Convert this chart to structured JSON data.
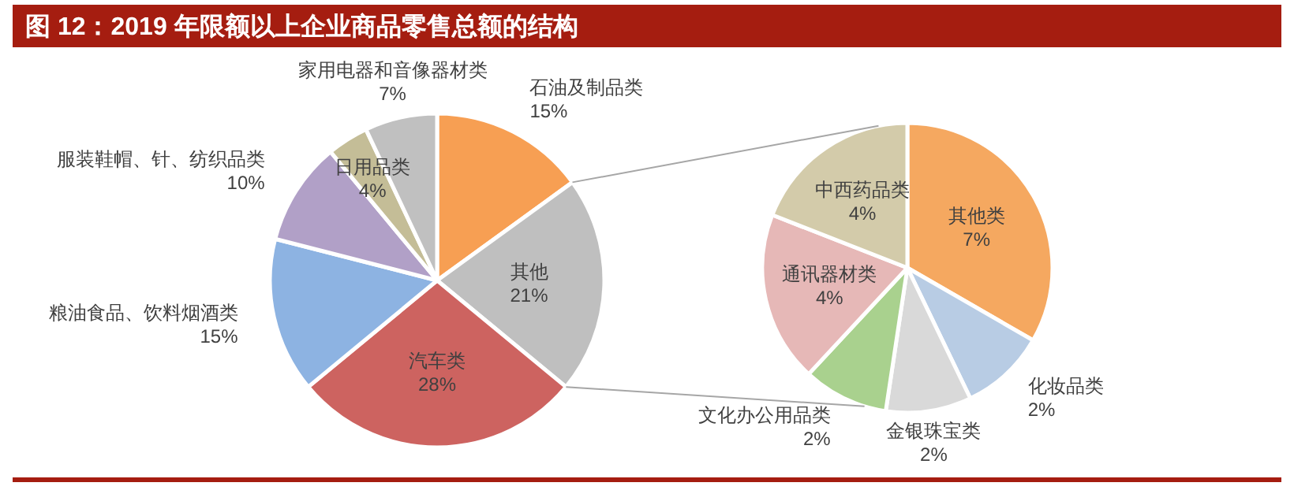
{
  "chart_data": [
    {
      "type": "pie",
      "title": "图 12：2019 年限额以上企业商品零售总额的结构",
      "categories": [
        "石油及制品类",
        "其他",
        "汽车类",
        "粮油食品、饮料烟酒类",
        "服装鞋帽、针、纺织品类",
        "日用品类",
        "家用电器和音像器材类"
      ],
      "values": [
        15,
        21,
        28,
        15,
        10,
        4,
        7
      ],
      "value_labels": [
        "15%",
        "21%",
        "28%",
        "15%",
        "10%",
        "4%",
        "7%"
      ],
      "colors": [
        "#f79f53",
        "#bfbfbf",
        "#cd6360",
        "#8db3e2",
        "#b1a0c7",
        "#c4bd97",
        "#c0c0c0"
      ]
    },
    {
      "type": "pie",
      "categories": [
        "其他类",
        "化妆品类",
        "金银珠宝类",
        "文化办公用品类",
        "通讯器材类",
        "中西药品类"
      ],
      "values": [
        7,
        2,
        2,
        2,
        4,
        4
      ],
      "value_labels": [
        "7%",
        "2%",
        "2%",
        "2%",
        "4%",
        "4%"
      ],
      "colors": [
        "#f5a860",
        "#b8cce4",
        "#d9d9d9",
        "#a9d18e",
        "#e6b8b7",
        "#d3cbaa"
      ]
    }
  ]
}
